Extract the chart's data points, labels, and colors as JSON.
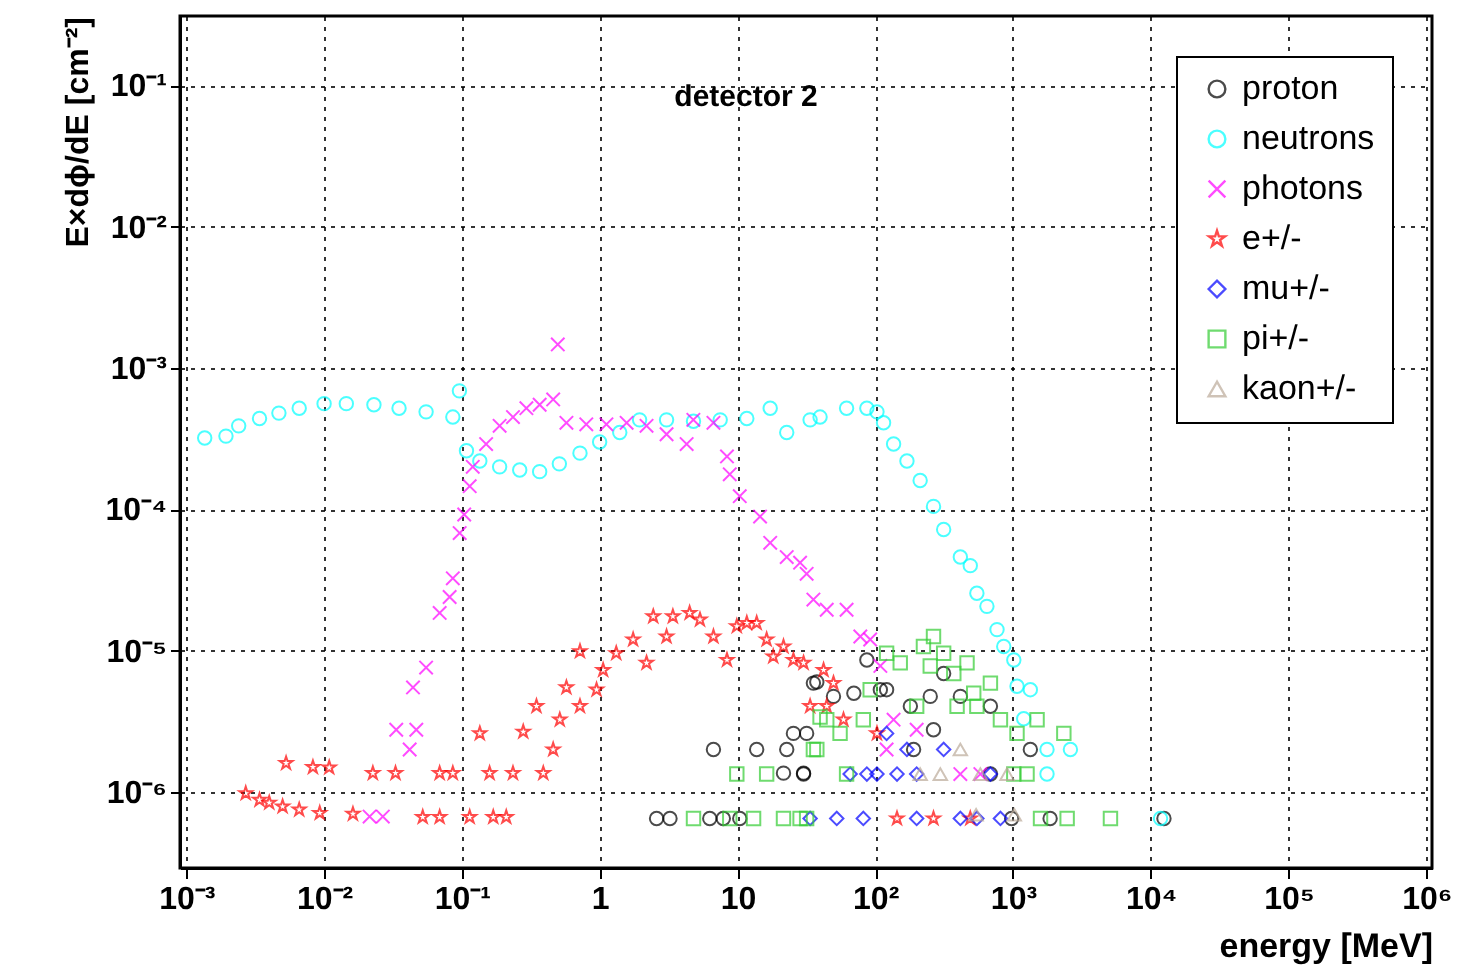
{
  "chart_data": {
    "type": "scatter",
    "title": "detector 2",
    "xlabel": "energy [MeV]",
    "ylabel": "E×dϕ/dE [cm⁻²]",
    "log": "xy",
    "grid": true,
    "legend": "top right",
    "xlim": [
      0.0009,
      1100000
    ],
    "ylim": [
      2.9e-07,
      0.31
    ],
    "xticks": [
      {
        "value": 0.001,
        "label": "10⁻³"
      },
      {
        "value": 0.01,
        "label": "10⁻²"
      },
      {
        "value": 0.1,
        "label": "10⁻¹"
      },
      1,
      10,
      {
        "value": 100,
        "label": "10²"
      },
      {
        "value": 1000,
        "label": "10³"
      },
      {
        "value": 10000,
        "label": "10⁴"
      },
      {
        "value": 100000,
        "label": "10⁵"
      },
      {
        "value": 1000000,
        "label": "10⁶"
      }
    ],
    "yticks": [
      {
        "value": 1e-06,
        "label": "10⁻⁶"
      },
      {
        "value": 1e-05,
        "label": "10⁻⁵"
      },
      {
        "value": 0.0001,
        "label": "10⁻⁴"
      },
      {
        "value": 0.001,
        "label": "10⁻³"
      },
      {
        "value": 0.01,
        "label": "10⁻²"
      },
      {
        "value": 0.1,
        "label": "10⁻¹"
      }
    ],
    "series": [
      {
        "name": "proton",
        "color": "#000000",
        "marker": "circle",
        "x": [
          2.59,
          3.24,
          6.3,
          7.9,
          10.4,
          6.7,
          13.8,
          22.8,
          25.5,
          31.8,
          21.6,
          30.2,
          37.7,
          35.6,
          49.8,
          70,
          87,
          109,
          121,
          180,
          251,
          314,
          415,
          686,
          265,
          190,
          1337,
          30.2,
          686,
          978,
          1860,
          12470
        ],
        "values": [
          6.5e-07,
          6.5e-07,
          6.5e-07,
          6.5e-07,
          6.5e-07,
          2e-06,
          2e-06,
          2e-06,
          2.6e-06,
          2.6e-06,
          1.36e-06,
          1.36e-06,
          6e-06,
          5.9e-06,
          4.75e-06,
          5e-06,
          8.6e-06,
          5.3e-06,
          5.3e-06,
          4.05e-06,
          4.75e-06,
          6.9e-06,
          4.75e-06,
          4.05e-06,
          2.76e-06,
          2e-06,
          2e-06,
          1.34e-06,
          1.34e-06,
          6.5e-07,
          6.5e-07,
          6.5e-07
        ]
      },
      {
        "name": "neutrons",
        "color": "#00ffff",
        "marker": "circle",
        "x": [
          0.00136,
          0.00194,
          0.0024,
          0.0034,
          0.0047,
          0.0066,
          0.01,
          0.0145,
          0.023,
          0.035,
          0.055,
          0.086,
          0.096,
          0.108,
          0.135,
          0.188,
          0.263,
          0.367,
          0.51,
          0.72,
          1.0,
          1.4,
          1.95,
          3.06,
          4.8,
          7.5,
          11.7,
          17.3,
          22.8,
          33.7,
          39.8,
          62,
          87,
          103,
          115,
          136,
          170,
          212,
          265,
          314,
          415,
          490,
          547,
          647,
          766,
          857,
          1014,
          1070,
          1337,
          1197,
          1766,
          2612,
          1766,
          11780
        ],
        "values": [
          0.00032,
          0.00033,
          0.00039,
          0.00044,
          0.00048,
          0.00052,
          0.00056,
          0.00056,
          0.00055,
          0.00052,
          0.00049,
          0.00045,
          0.00069,
          0.00026,
          0.00022,
          0.0002,
          0.00019,
          0.000185,
          0.00021,
          0.00025,
          0.0003,
          0.00035,
          0.00043,
          0.00043,
          0.00042,
          0.00043,
          0.00044,
          0.00052,
          0.00035,
          0.00043,
          0.00045,
          0.00052,
          0.00052,
          0.00049,
          0.00041,
          0.00029,
          0.00022,
          0.00016,
          0.000105,
          7.2e-05,
          4.6e-05,
          4e-05,
          2.55e-05,
          2.06e-05,
          1.41e-05,
          1.07e-05,
          8.6e-06,
          5.6e-06,
          5.3e-06,
          3.3e-06,
          2e-06,
          2e-06,
          1.34e-06,
          6.5e-07
        ]
      },
      {
        "name": "photons",
        "color": "#ff00ff",
        "marker": "cross",
        "x": [
          0.0214,
          0.0267,
          0.0334,
          0.0418,
          0.0467,
          0.0442,
          0.055,
          0.069,
          0.0815,
          0.086,
          0.0964,
          0.104,
          0.114,
          0.12,
          0.15,
          0.188,
          0.235,
          0.294,
          0.367,
          0.46,
          0.497,
          0.574,
          0.8,
          1.12,
          1.57,
          2.19,
          3.06,
          4.28,
          4.79,
          6.7,
          8.4,
          8.8,
          10.4,
          14.6,
          17.3,
          22.8,
          28.5,
          35.6,
          31.8,
          44.5,
          62,
          78,
          92,
          109,
          136,
          121,
          200,
          415,
          580
        ],
        "values": [
          6.7e-07,
          6.7e-07,
          2.76e-06,
          2e-06,
          2.76e-06,
          5.5e-06,
          7.6e-06,
          1.85e-05,
          2.4e-05,
          3.25e-05,
          6.8e-05,
          9.2e-05,
          0.000146,
          0.0002,
          0.00029,
          0.00039,
          0.00045,
          0.00052,
          0.00055,
          0.0006,
          0.00147,
          0.00041,
          0.0004,
          0.0004,
          0.00041,
          0.00039,
          0.00034,
          0.00029,
          0.00043,
          0.00041,
          0.000237,
          0.000177,
          0.000124,
          8.9e-05,
          5.8e-05,
          4.6e-05,
          4.2e-05,
          2.3e-05,
          3.5e-05,
          1.95e-05,
          1.95e-05,
          1.26e-05,
          1.2e-05,
          7.8e-06,
          3.25e-06,
          2e-06,
          2.76e-06,
          1.34e-06,
          1.34e-06
        ]
      },
      {
        "name": "e+/-",
        "color": "#ff0000",
        "marker": "star",
        "x": [
          0.0027,
          0.0034,
          0.004,
          0.005,
          0.0066,
          0.0093,
          0.0162,
          0.052,
          0.069,
          0.114,
          0.169,
          0.21,
          0.0053,
          0.0083,
          0.0109,
          0.0226,
          0.033,
          0.069,
          0.086,
          0.159,
          0.235,
          0.39,
          0.135,
          0.279,
          0.348,
          0.46,
          0.514,
          0.574,
          0.72,
          0.72,
          0.95,
          1.06,
          1.32,
          1.75,
          2.19,
          2.45,
          3.4,
          4.5,
          3.06,
          5.35,
          6.7,
          8.4,
          9.9,
          11.7,
          13.8,
          16.3,
          18.2,
          21.6,
          25.5,
          30.2,
          33.7,
          42.2,
          49.8,
          44.5,
          58.9,
          103,
          144,
          265,
          490
        ],
        "values": [
          9.8e-07,
          8.8e-07,
          8.4e-07,
          7.9e-07,
          7.5e-07,
          7.1e-07,
          7e-07,
          6.65e-07,
          6.65e-07,
          6.65e-07,
          6.65e-07,
          6.65e-07,
          1.6e-06,
          1.5e-06,
          1.49e-06,
          1.36e-06,
          1.36e-06,
          1.36e-06,
          1.36e-06,
          1.36e-06,
          1.36e-06,
          1.36e-06,
          2.6e-06,
          2.67e-06,
          4.05e-06,
          2e-06,
          3.25e-06,
          5.5e-06,
          4.05e-06,
          9.9e-06,
          5.3e-06,
          7.3e-06,
          9.6e-06,
          1.2e-05,
          8.2e-06,
          1.75e-05,
          1.75e-05,
          1.85e-05,
          1.26e-05,
          1.66e-05,
          1.26e-05,
          8.6e-06,
          1.49e-05,
          1.57e-05,
          1.57e-05,
          1.2e-05,
          9.1e-06,
          1.07e-05,
          8.6e-06,
          8.2e-06,
          4.05e-06,
          7.3e-06,
          5.9e-06,
          4.05e-06,
          3.25e-06,
          2.6e-06,
          6.5e-07,
          6.5e-07,
          6.5e-07
        ]
      },
      {
        "name": "mu+/-",
        "color": "#0000ff",
        "marker": "diamond",
        "x": [
          65.8,
          87,
          103,
          144,
          200,
          686,
          121,
          170,
          314,
          33.7,
          52.6,
          82,
          200,
          415,
          547,
          811
        ],
        "values": [
          1.34e-06,
          1.34e-06,
          1.34e-06,
          1.34e-06,
          1.34e-06,
          1.34e-06,
          2.6e-06,
          2e-06,
          2e-06,
          6.5e-07,
          6.5e-07,
          6.5e-07,
          6.5e-07,
          6.5e-07,
          6.5e-07,
          6.5e-07
        ]
      },
      {
        "name": "pi+/-",
        "color": "#33cc33",
        "marker": "square",
        "x": [
          9.9,
          16.3,
          4.8,
          8.8,
          13.1,
          21.6,
          28.5,
          37.7,
          39.8,
          35.6,
          44.5,
          55.6,
          82,
          92,
          121,
          152,
          200,
          224,
          251,
          265,
          314,
          372,
          393,
          464,
          519,
          547,
          686,
          811,
          1070,
          1496,
          2340,
          62,
          1014,
          1265,
          31.8,
          1585,
          2473,
          5100
        ],
        "values": [
          1.34e-06,
          1.34e-06,
          6.5e-07,
          6.5e-07,
          6.5e-07,
          6.5e-07,
          6.5e-07,
          2e-06,
          3.4e-06,
          2e-06,
          3.25e-06,
          2.6e-06,
          3.25e-06,
          5.3e-06,
          9.6e-06,
          8.2e-06,
          4.05e-06,
          1.07e-05,
          7.8e-06,
          1.26e-05,
          9.6e-06,
          6.9e-06,
          4.05e-06,
          8.2e-06,
          5e-06,
          4.05e-06,
          5.9e-06,
          3.25e-06,
          2.6e-06,
          3.25e-06,
          2.6e-06,
          1.34e-06,
          1.34e-06,
          1.34e-06,
          6.5e-07,
          6.5e-07,
          6.5e-07,
          6.5e-07
        ]
      },
      {
        "name": "kaon+/-",
        "color": "#bbaa99",
        "marker": "triangle",
        "x": [
          212,
          297,
          580,
          906,
          415,
          540,
          1023
        ],
        "values": [
          1.34e-06,
          1.34e-06,
          1.34e-06,
          1.34e-06,
          2e-06,
          6.9e-07,
          6.9e-07
        ]
      }
    ]
  }
}
